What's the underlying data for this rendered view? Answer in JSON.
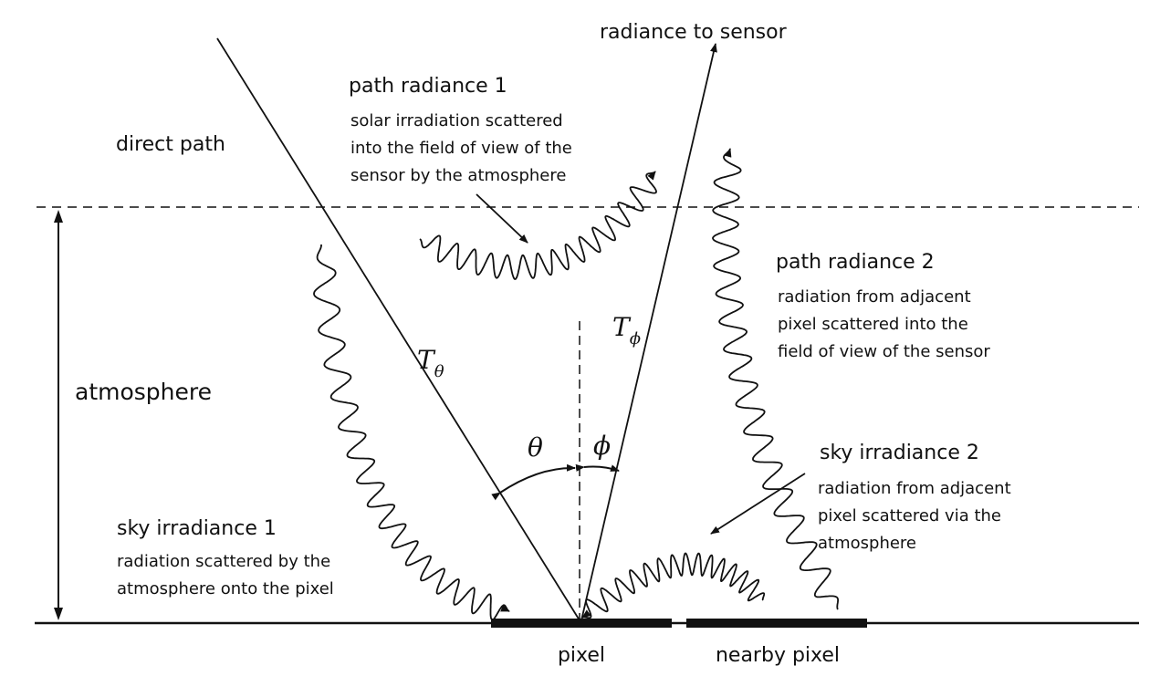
{
  "labels": {
    "radiance_to_sensor": "radiance to sensor",
    "path_radiance_1": "path radiance 1",
    "path_radiance_1_desc": [
      "solar irradiation scattered",
      "into the field of view of the",
      "sensor by the atmosphere"
    ],
    "direct_path": "direct path",
    "path_radiance_2": "path radiance 2",
    "path_radiance_2_desc": [
      "radiation from adjacent",
      "pixel scattered into the",
      "field of view of the sensor"
    ],
    "atmosphere": "atmosphere",
    "sky_irradiance_2": "sky irradiance 2",
    "sky_irradiance_2_desc": [
      "radiation from adjacent",
      "pixel scattered via the",
      "atmosphere"
    ],
    "sky_irradiance_1": "sky irradiance 1",
    "sky_irradiance_1_desc": [
      "radiation scattered by the",
      "atmosphere onto the pixel"
    ],
    "pixel": "pixel",
    "nearby_pixel": "nearby pixel"
  },
  "symbols": {
    "T": "T",
    "theta": "θ",
    "phi": "ϕ"
  },
  "colors": {
    "ink": "#111111",
    "background": "#ffffff"
  }
}
